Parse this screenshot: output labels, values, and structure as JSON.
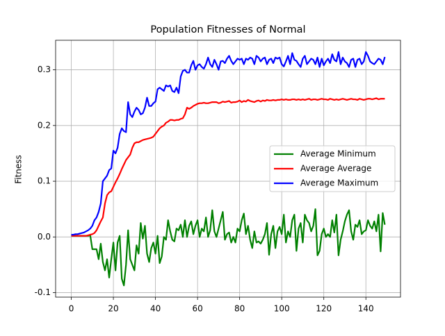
{
  "chart_data": {
    "type": "line",
    "title": "Population Fitnesses of Normal",
    "y_label": "Fitness",
    "x": [
      0,
      1,
      2,
      3,
      4,
      5,
      6,
      7,
      8,
      9,
      10,
      11,
      12,
      13,
      14,
      15,
      16,
      17,
      18,
      19,
      20,
      21,
      22,
      23,
      24,
      25,
      26,
      27,
      28,
      29,
      30,
      31,
      32,
      33,
      34,
      35,
      36,
      37,
      38,
      39,
      40,
      41,
      42,
      43,
      44,
      45,
      46,
      47,
      48,
      49,
      50,
      51,
      52,
      53,
      54,
      55,
      56,
      57,
      58,
      59,
      60,
      61,
      62,
      63,
      64,
      65,
      66,
      67,
      68,
      69,
      70,
      71,
      72,
      73,
      74,
      75,
      76,
      77,
      78,
      79,
      80,
      81,
      82,
      83,
      84,
      85,
      86,
      87,
      88,
      89,
      90,
      91,
      92,
      93,
      94,
      95,
      96,
      97,
      98,
      99,
      100,
      101,
      102,
      103,
      104,
      105,
      106,
      107,
      108,
      109,
      110,
      111,
      112,
      113,
      114,
      115,
      116,
      117,
      118,
      119,
      120,
      121,
      122,
      123,
      124,
      125,
      126,
      127,
      128,
      129,
      130,
      131,
      132,
      133,
      134,
      135,
      136,
      137,
      138,
      139,
      140,
      141,
      142,
      143,
      144,
      145,
      146,
      147,
      148,
      149
    ],
    "series": [
      {
        "name": "Average Minimum",
        "color": "#008000",
        "values": [
          0.002,
          0.002,
          0.002,
          0.002,
          0.002,
          0.002,
          0.002,
          0.002,
          0.002,
          0.003,
          -0.022,
          -0.022,
          -0.022,
          -0.04,
          -0.012,
          -0.045,
          -0.06,
          -0.04,
          -0.073,
          -0.04,
          -0.01,
          -0.06,
          -0.01,
          0.002,
          -0.075,
          -0.087,
          -0.05,
          0.012,
          -0.04,
          -0.05,
          -0.06,
          -0.015,
          -0.03,
          0.025,
          -0.003,
          0.02,
          -0.03,
          -0.045,
          -0.02,
          -0.01,
          -0.03,
          0.002,
          -0.047,
          -0.035,
          0.0,
          -0.005,
          0.03,
          0.01,
          -0.005,
          -0.008,
          0.015,
          0.012,
          0.022,
          0.0,
          0.03,
          0.0,
          0.02,
          0.028,
          0.005,
          0.02,
          0.03,
          0.0,
          0.015,
          0.01,
          0.035,
          0.0,
          0.012,
          0.048,
          0.01,
          0.0,
          0.015,
          0.03,
          0.045,
          -0.005,
          0.005,
          0.008,
          -0.01,
          0.0,
          -0.01,
          0.015,
          0.01,
          0.03,
          0.042,
          0.005,
          0.02,
          -0.005,
          -0.02,
          0.01,
          -0.01,
          -0.008,
          -0.012,
          -0.005,
          0.005,
          0.025,
          -0.032,
          0.005,
          0.02,
          -0.02,
          0.01,
          0.018,
          0.005,
          0.04,
          -0.01,
          0.01,
          0.0,
          0.03,
          0.04,
          -0.025,
          0.015,
          0.025,
          -0.01,
          0.04,
          0.03,
          0.025,
          0.01,
          0.02,
          0.05,
          -0.033,
          -0.025,
          0.005,
          0.015,
          0.0,
          0.005,
          0.0,
          0.03,
          0.008,
          0.04,
          -0.033,
          -0.005,
          0.01,
          0.028,
          0.04,
          0.048,
          0.01,
          -0.005,
          0.022,
          0.018,
          0.03,
          0.005,
          0.01,
          0.012,
          0.03,
          0.02,
          0.015,
          0.028,
          0.01,
          0.04,
          -0.026,
          0.043,
          0.022
        ]
      },
      {
        "name": "Average Average",
        "color": "#ff0000",
        "values": [
          0.002,
          0.002,
          0.002,
          0.002,
          0.002,
          0.002,
          0.002,
          0.002,
          0.003,
          0.004,
          0.005,
          0.007,
          0.012,
          0.02,
          0.028,
          0.035,
          0.06,
          0.075,
          0.08,
          0.082,
          0.09,
          0.098,
          0.105,
          0.113,
          0.122,
          0.13,
          0.138,
          0.143,
          0.148,
          0.16,
          0.168,
          0.17,
          0.17,
          0.172,
          0.174,
          0.175,
          0.176,
          0.177,
          0.178,
          0.18,
          0.185,
          0.19,
          0.195,
          0.198,
          0.2,
          0.205,
          0.207,
          0.21,
          0.21,
          0.209,
          0.21,
          0.21,
          0.212,
          0.213,
          0.22,
          0.232,
          0.23,
          0.232,
          0.235,
          0.237,
          0.239,
          0.24,
          0.24,
          0.241,
          0.24,
          0.24,
          0.241,
          0.242,
          0.242,
          0.242,
          0.24,
          0.241,
          0.243,
          0.242,
          0.243,
          0.244,
          0.241,
          0.242,
          0.242,
          0.243,
          0.245,
          0.242,
          0.244,
          0.243,
          0.246,
          0.244,
          0.243,
          0.242,
          0.244,
          0.245,
          0.243,
          0.245,
          0.244,
          0.246,
          0.245,
          0.245,
          0.246,
          0.245,
          0.246,
          0.246,
          0.247,
          0.246,
          0.247,
          0.246,
          0.246,
          0.247,
          0.247,
          0.246,
          0.247,
          0.246,
          0.247,
          0.246,
          0.247,
          0.248,
          0.246,
          0.247,
          0.247,
          0.246,
          0.247,
          0.248,
          0.247,
          0.247,
          0.246,
          0.248,
          0.247,
          0.246,
          0.247,
          0.246,
          0.247,
          0.248,
          0.247,
          0.246,
          0.247,
          0.248,
          0.247,
          0.247,
          0.246,
          0.248,
          0.247,
          0.246,
          0.247,
          0.248,
          0.248,
          0.247,
          0.248,
          0.249,
          0.247,
          0.248,
          0.248,
          0.248
        ]
      },
      {
        "name": "Average Maximum",
        "color": "#0000ff",
        "values": [
          0.004,
          0.004,
          0.005,
          0.005,
          0.006,
          0.007,
          0.008,
          0.01,
          0.012,
          0.015,
          0.02,
          0.03,
          0.035,
          0.045,
          0.06,
          0.1,
          0.105,
          0.11,
          0.12,
          0.123,
          0.155,
          0.15,
          0.16,
          0.185,
          0.195,
          0.19,
          0.188,
          0.242,
          0.22,
          0.215,
          0.225,
          0.232,
          0.228,
          0.22,
          0.222,
          0.232,
          0.25,
          0.235,
          0.235,
          0.24,
          0.243,
          0.265,
          0.268,
          0.265,
          0.262,
          0.272,
          0.27,
          0.272,
          0.262,
          0.26,
          0.268,
          0.258,
          0.288,
          0.298,
          0.3,
          0.295,
          0.295,
          0.308,
          0.316,
          0.3,
          0.308,
          0.31,
          0.305,
          0.302,
          0.31,
          0.322,
          0.31,
          0.305,
          0.318,
          0.31,
          0.3,
          0.315,
          0.316,
          0.312,
          0.32,
          0.325,
          0.316,
          0.31,
          0.315,
          0.32,
          0.318,
          0.32,
          0.31,
          0.32,
          0.318,
          0.322,
          0.32,
          0.31,
          0.325,
          0.322,
          0.315,
          0.32,
          0.322,
          0.31,
          0.318,
          0.32,
          0.312,
          0.322,
          0.32,
          0.322,
          0.31,
          0.306,
          0.315,
          0.325,
          0.31,
          0.33,
          0.318,
          0.316,
          0.31,
          0.305,
          0.32,
          0.325,
          0.31,
          0.315,
          0.32,
          0.318,
          0.31,
          0.322,
          0.305,
          0.32,
          0.308,
          0.315,
          0.32,
          0.312,
          0.328,
          0.318,
          0.315,
          0.332,
          0.31,
          0.322,
          0.315,
          0.312,
          0.305,
          0.318,
          0.32,
          0.305,
          0.318,
          0.32,
          0.31,
          0.315,
          0.332,
          0.325,
          0.315,
          0.312,
          0.31,
          0.315,
          0.32,
          0.318,
          0.31,
          0.323
        ]
      }
    ],
    "xlim": [
      -7.45,
      156.45
    ],
    "ylim": [
      -0.108,
      0.353
    ],
    "xticks": [
      0,
      20,
      40,
      60,
      80,
      100,
      120,
      140
    ],
    "yticks": [
      -0.1,
      {
        "value": 0,
        "label": "0.0"
      },
      0.1,
      0.2,
      0.3
    ],
    "grid": true,
    "legend": "center right"
  }
}
